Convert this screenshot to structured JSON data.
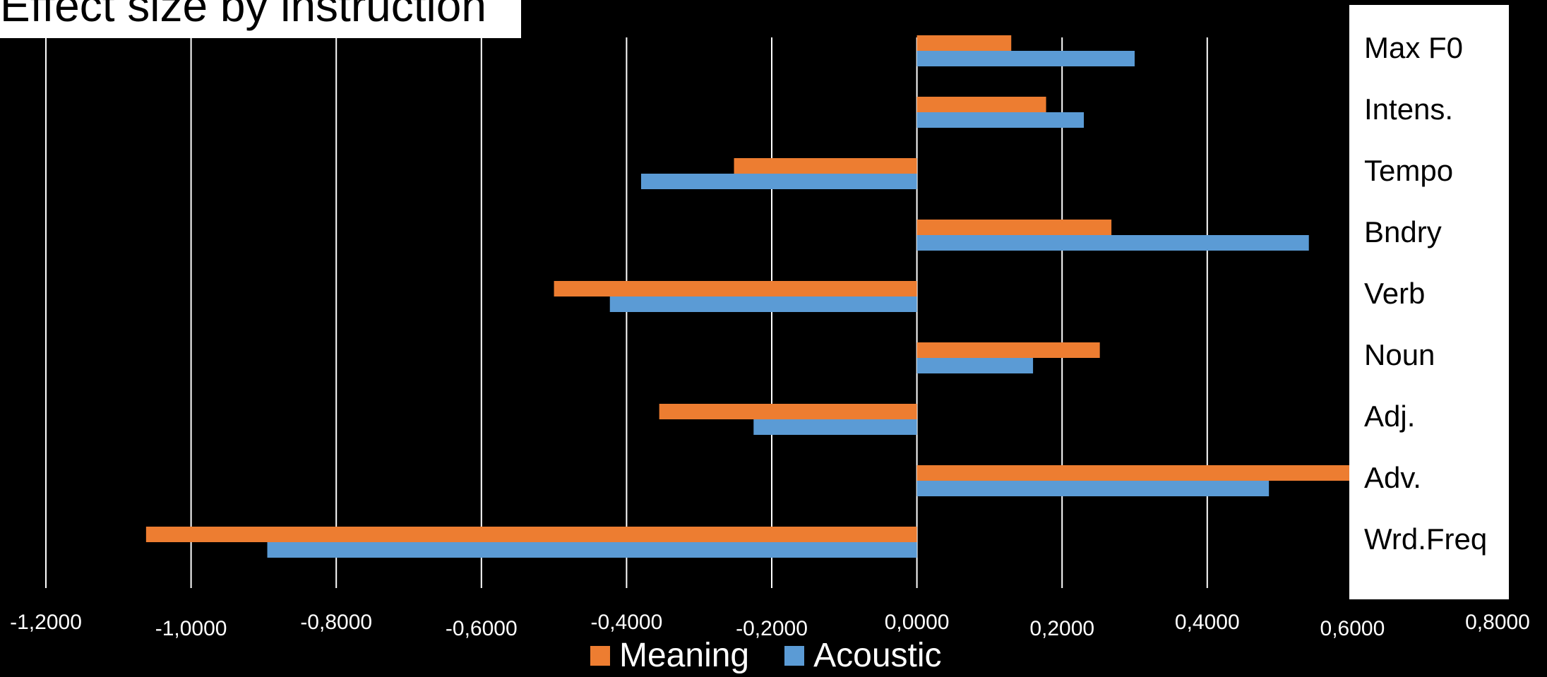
{
  "chart_data": {
    "type": "bar",
    "orientation": "horizontal",
    "title": "Effect size by instruction",
    "categories": [
      "Max F0",
      "Intens.",
      "Tempo",
      "Bndry",
      "Verb",
      "Noun",
      "Adj.",
      "Adv.",
      "Wrd.Freq"
    ],
    "series": [
      {
        "name": "Meaning",
        "color": "#ED7D31",
        "values": [
          0.13,
          0.178,
          -0.252,
          0.268,
          -0.5,
          0.252,
          -0.355,
          0.61,
          -1.062
        ]
      },
      {
        "name": "Acoustic",
        "color": "#5B9BD5",
        "values": [
          0.3,
          0.23,
          -0.38,
          0.54,
          -0.423,
          0.16,
          -0.225,
          0.485,
          -0.895
        ]
      }
    ],
    "xlim": [
      -1.2,
      0.8
    ],
    "x_ticks": [
      "-1,2000",
      "-1,0000",
      "-0,8000",
      "-0,6000",
      "-0,4000",
      "-0,2000",
      "0,0000",
      "0,2000",
      "0,4000",
      "0,6000",
      "0,8000"
    ],
    "grid": true,
    "legend_position": "bottom",
    "category_labels_position": "right"
  }
}
